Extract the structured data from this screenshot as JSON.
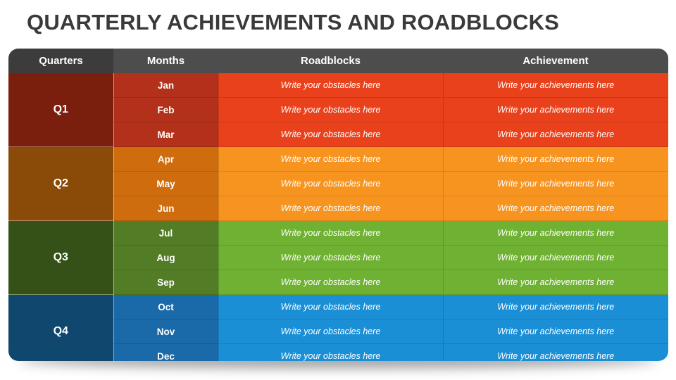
{
  "title": "QUARTERLY ACHIEVEMENTS AND ROADBLOCKS",
  "headers": {
    "quarters": "Quarters",
    "months": "Months",
    "roadblocks": "Roadblocks",
    "achievement": "Achievement"
  },
  "quarters": [
    {
      "label": "Q1",
      "colors": {
        "quarter": "#7a1f0e",
        "month": "#b3301a",
        "cell": "#e8411b"
      },
      "months": [
        {
          "name": "Jan",
          "roadblock": "Write your obstacles here",
          "achievement": "Write your achievements here"
        },
        {
          "name": "Feb",
          "roadblock": "Write your obstacles here",
          "achievement": "Write your achievements here"
        },
        {
          "name": "Mar",
          "roadblock": "Write your obstacles here",
          "achievement": "Write your achievements here"
        }
      ]
    },
    {
      "label": "Q2",
      "colors": {
        "quarter": "#8a4a08",
        "month": "#cf6c0e",
        "cell": "#f7941f"
      },
      "months": [
        {
          "name": "Apr",
          "roadblock": "Write your obstacles here",
          "achievement": "Write your achievements here"
        },
        {
          "name": "May",
          "roadblock": "Write your obstacles here",
          "achievement": "Write your achievements here"
        },
        {
          "name": "Jun",
          "roadblock": "Write your obstacles here",
          "achievement": "Write your achievements here"
        }
      ]
    },
    {
      "label": "Q3",
      "colors": {
        "quarter": "#365117",
        "month": "#527c25",
        "cell": "#6fb132"
      },
      "months": [
        {
          "name": "Jul",
          "roadblock": "Write your obstacles here",
          "achievement": "Write your achievements here"
        },
        {
          "name": "Aug",
          "roadblock": "Write your obstacles here",
          "achievement": "Write your achievements here"
        },
        {
          "name": "Sep",
          "roadblock": "Write your obstacles here",
          "achievement": "Write your achievements here"
        }
      ]
    },
    {
      "label": "Q4",
      "colors": {
        "quarter": "#10476e",
        "month": "#1a69a8",
        "cell": "#1a8fd6"
      },
      "months": [
        {
          "name": "Oct",
          "roadblock": "Write your obstacles here",
          "achievement": "Write your achievements here"
        },
        {
          "name": "Nov",
          "roadblock": "Write your obstacles here",
          "achievement": "Write your achievements here"
        },
        {
          "name": "Dec",
          "roadblock": "Write your obstacles here",
          "achievement": "Write your achievements here"
        }
      ]
    }
  ]
}
